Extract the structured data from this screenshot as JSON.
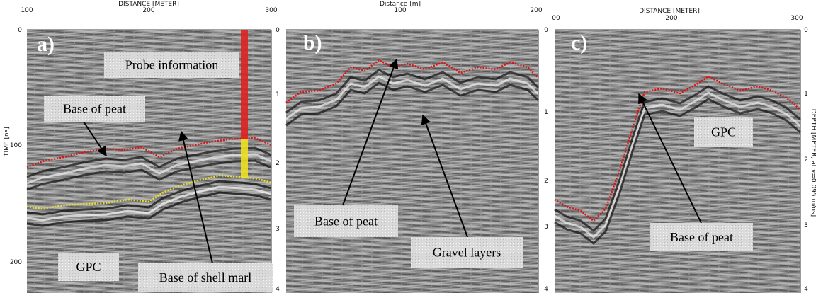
{
  "panels": [
    {
      "label": "a)",
      "x_axis_title": "DISTANCE [METER]",
      "x_ticks": [
        "100",
        "200",
        "300"
      ],
      "y_axis_title": "TIME [ns]",
      "y_ticks": [
        "0",
        "100",
        "200"
      ],
      "depth_ticks": [
        "0",
        "1",
        "2",
        "3",
        "4"
      ],
      "annotations": [
        "Probe information",
        "Base of peat",
        "GPC",
        "Base of shell marl"
      ]
    },
    {
      "label": "b)",
      "x_axis_title": "Distance [m]",
      "x_ticks": [
        "100",
        "200"
      ],
      "depth_ticks": [
        "0",
        "1",
        "2",
        "3",
        "4"
      ],
      "annotations": [
        "Base of peat",
        "Gravel layers"
      ]
    },
    {
      "label": "c)",
      "x_axis_title": "DISTANCE [METER]",
      "x_ticks": [
        "00",
        "200",
        "300"
      ],
      "depth_ticks": [
        "0",
        "1",
        "2",
        "3",
        "4"
      ],
      "depth_axis_title": "DEPTH [METER, at v=0.095 m/ns]",
      "annotations": [
        "GPC",
        "Base of peat"
      ]
    }
  ]
}
